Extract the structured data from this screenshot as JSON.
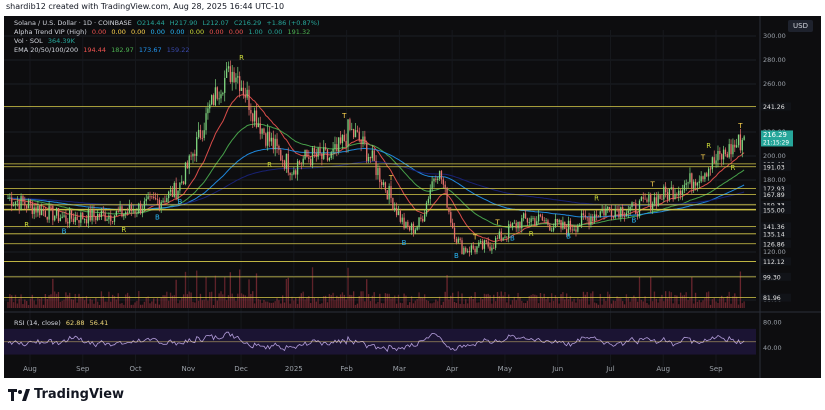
{
  "header": {
    "text": "shardib12 created with TradingView.com, Aug 28, 2025 16:44 UTC-10"
  },
  "legend": {
    "symbol_line": {
      "title": "Solana / U.S. Dollar · 1D · COINBASE",
      "o": "O214.44",
      "h": "H217.90",
      "l": "L212.07",
      "c": "C216.29",
      "chg": "+1.86 (+0.87%)"
    },
    "alpha_line": {
      "title": "Alpha Trend VIP (High)",
      "values": [
        "0.00",
        "0.00",
        "0.00",
        "0.00",
        "0.00",
        "0.00",
        "0.00",
        "0.00",
        "1.00",
        "0.00",
        "191.32"
      ]
    },
    "vol_line": {
      "title": "Vol · SOL",
      "value": "364.39K"
    },
    "ema_line": {
      "title": "EMA 20/50/100/200",
      "values": [
        "194.44",
        "182.97",
        "173.67",
        "159.22"
      ]
    },
    "rsi_line": {
      "title": "RSI (14, close)",
      "values": [
        "62.88",
        "56.41"
      ]
    }
  },
  "currency": "USD",
  "logo_text": "TradingView",
  "price_badges": {
    "last": "216.29",
    "countdown": "21:15:29"
  },
  "colors": {
    "up": "#26a69a",
    "down": "#ef5350",
    "level": "#d8cc4a",
    "ema20": "#ef5350",
    "ema50": "#4caf50",
    "ema100": "#2196f3",
    "ema200": "#1a237e",
    "rsi": "#f0d878",
    "signal_r": "#cddc39",
    "signal_b": "#29b6f6",
    "signal_t": "#ffd54f"
  },
  "chart_data": {
    "type": "candlestick",
    "title": "Solana / U.S. Dollar · 1D · COINBASE",
    "x_ticks": [
      "Aug",
      "Sep",
      "Oct",
      "Nov",
      "Dec",
      "2025",
      "Feb",
      "Mar",
      "Apr",
      "May",
      "Jun",
      "Jul",
      "Aug",
      "Sep"
    ],
    "y_ticks": [
      300,
      280,
      260,
      240,
      220,
      200,
      180,
      160,
      140,
      120,
      100,
      80
    ],
    "ylim": [
      75,
      305
    ],
    "levels": [
      241.26,
      193.46,
      191.03,
      172.93,
      167.89,
      159.33,
      155.56,
      155.0,
      141.36,
      135.14,
      126.86,
      112.12,
      99.3,
      81.96
    ],
    "close_by_month": [
      {
        "x": "Aug 2024",
        "close": 148
      },
      {
        "x": "Sep 2024",
        "close": 152
      },
      {
        "x": "Oct 2024",
        "close": 168
      },
      {
        "x": "Nov 2024",
        "close": 237
      },
      {
        "x": "Dec 2024",
        "close": 190
      },
      {
        "x": "Jan 2025",
        "close": 238
      },
      {
        "x": "Feb 2025",
        "close": 140
      },
      {
        "x": "Mar 2025",
        "close": 125
      },
      {
        "x": "Apr 2025",
        "close": 148
      },
      {
        "x": "May 2025",
        "close": 160
      },
      {
        "x": "Jun 2025",
        "close": 155
      },
      {
        "x": "Jul 2025",
        "close": 178
      },
      {
        "x": "Aug 2025",
        "close": 216
      }
    ],
    "rsi": {
      "ylim": [
        20,
        90
      ],
      "y_ticks": [
        80,
        40
      ]
    },
    "last_price": 216.29
  }
}
